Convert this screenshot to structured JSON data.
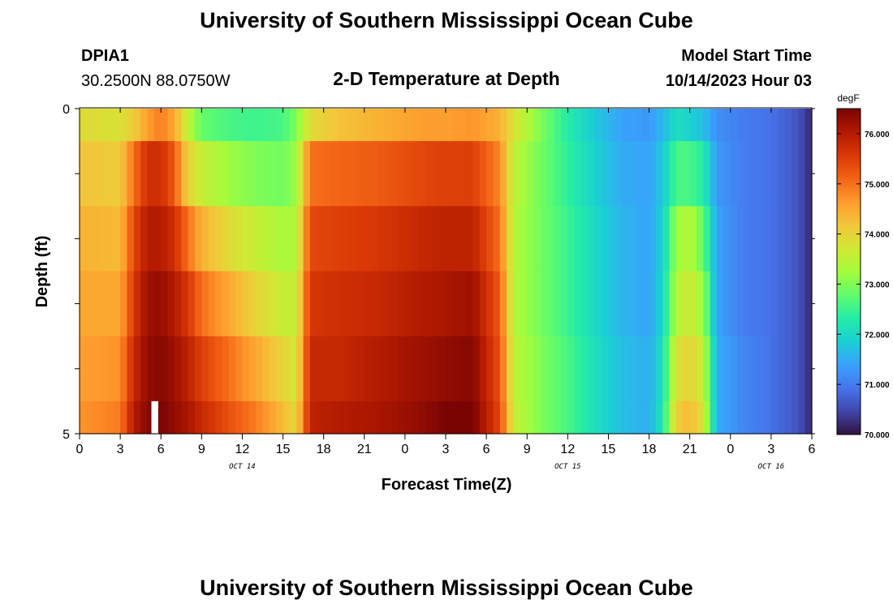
{
  "header": {
    "title": "University of Southern Mississippi Ocean Cube",
    "station_id": "DPIA1",
    "coords": "30.2500N  88.0750W",
    "plot_title": "2-D Temperature at Depth",
    "start_label": "Model Start Time",
    "start_value": "10/14/2023 Hour 03"
  },
  "footer": {
    "title": "University of Southern Mississippi Ocean Cube"
  },
  "chart_data": {
    "type": "heatmap",
    "xlabel": "Forecast Time(Z)",
    "ylabel": "Depth (ft)",
    "y_tick_labels": [
      "0",
      "5"
    ],
    "x_tick_labels": [
      "0",
      "3",
      "6",
      "9",
      "12",
      "15",
      "18",
      "21",
      "0",
      "3",
      "6",
      "9",
      "12",
      "15",
      "18",
      "21",
      "0",
      "3",
      "6"
    ],
    "date_labels": [
      {
        "text": "OCT 14",
        "hour": 12
      },
      {
        "text": "OCT 15",
        "hour": 36
      },
      {
        "text": "OCT 16",
        "hour": 51
      }
    ],
    "x_range_hours": [
      0,
      54
    ],
    "y_range_ft": [
      0,
      5
    ],
    "depth_levels": 5,
    "colorbar": {
      "unit": "degF",
      "min": 70.0,
      "max": 76.5,
      "tick_labels": [
        "70.000",
        "71.000",
        "72.000",
        "73.000",
        "74.000",
        "75.000",
        "76.000"
      ],
      "stops": [
        "#30123b",
        "#4145ab",
        "#4675ed",
        "#39a2fc",
        "#1bcfd4",
        "#24eca6",
        "#61fc6c",
        "#a4fc3b",
        "#d1e834",
        "#f3c63a",
        "#fe9b2d",
        "#f36315",
        "#d93806",
        "#b11901",
        "#7a0403"
      ]
    },
    "time_temps_degF": [
      {
        "hour": 0,
        "levels": [
          73.9,
          74.2,
          74.4,
          74.5,
          74.6,
          74.7
        ]
      },
      {
        "hour": 3,
        "levels": [
          73.8,
          74.1,
          74.3,
          74.5,
          74.7,
          74.9
        ]
      },
      {
        "hour": 4,
        "levels": [
          74.1,
          75.0,
          75.4,
          75.6,
          75.8,
          76.0
        ]
      },
      {
        "hour": 5,
        "levels": [
          74.6,
          75.7,
          76.0,
          76.2,
          76.3,
          76.4
        ]
      },
      {
        "hour": 6,
        "levels": [
          74.9,
          75.7,
          76.0,
          76.3,
          76.4,
          76.5
        ]
      },
      {
        "hour": 7,
        "levels": [
          74.5,
          75.2,
          75.7,
          76.0,
          76.2,
          76.3
        ]
      },
      {
        "hour": 8,
        "levels": [
          73.5,
          74.0,
          75.0,
          75.6,
          75.9,
          76.1
        ]
      },
      {
        "hour": 9,
        "levels": [
          72.8,
          73.6,
          74.4,
          75.0,
          75.5,
          75.8
        ]
      },
      {
        "hour": 11,
        "levels": [
          72.6,
          73.2,
          73.9,
          74.5,
          75.0,
          75.3
        ]
      },
      {
        "hour": 13,
        "levels": [
          72.5,
          73.0,
          73.6,
          74.0,
          74.5,
          74.9
        ]
      },
      {
        "hour": 15,
        "levels": [
          72.6,
          72.9,
          73.3,
          73.6,
          74.0,
          74.3
        ]
      },
      {
        "hour": 16,
        "levels": [
          73.0,
          73.2,
          73.4,
          73.6,
          73.7,
          73.9
        ]
      },
      {
        "hour": 17,
        "levels": [
          73.9,
          75.0,
          75.4,
          75.6,
          75.8,
          75.9
        ]
      },
      {
        "hour": 19,
        "levels": [
          74.2,
          75.1,
          75.5,
          75.7,
          75.8,
          76.0
        ]
      },
      {
        "hour": 22,
        "levels": [
          74.4,
          75.2,
          75.6,
          75.8,
          76.0,
          76.1
        ]
      },
      {
        "hour": 25,
        "levels": [
          74.6,
          75.4,
          75.8,
          76.0,
          76.2,
          76.3
        ]
      },
      {
        "hour": 27,
        "levels": [
          74.6,
          75.5,
          75.9,
          76.1,
          76.3,
          76.5
        ]
      },
      {
        "hour": 29,
        "levels": [
          74.7,
          75.5,
          75.9,
          76.2,
          76.4,
          76.5
        ]
      },
      {
        "hour": 31,
        "levels": [
          74.4,
          74.8,
          75.0,
          75.2,
          75.3,
          75.4
        ]
      },
      {
        "hour": 32,
        "levels": [
          73.8,
          73.5,
          73.4,
          73.4,
          73.5,
          73.6
        ]
      },
      {
        "hour": 34,
        "levels": [
          73.0,
          72.9,
          72.9,
          72.9,
          73.0,
          73.0
        ]
      },
      {
        "hour": 36,
        "levels": [
          72.3,
          72.4,
          72.5,
          72.5,
          72.6,
          72.6
        ]
      },
      {
        "hour": 38,
        "levels": [
          71.8,
          71.9,
          72.0,
          72.0,
          72.1,
          72.1
        ]
      },
      {
        "hour": 40,
        "levels": [
          71.4,
          71.5,
          71.6,
          71.6,
          71.7,
          71.7
        ]
      },
      {
        "hour": 42,
        "levels": [
          71.3,
          71.4,
          71.4,
          71.4,
          71.5,
          71.5
        ]
      },
      {
        "hour": 43,
        "levels": [
          71.6,
          71.8,
          71.9,
          72.0,
          72.1,
          72.2
        ]
      },
      {
        "hour": 44,
        "levels": [
          72.1,
          72.6,
          73.2,
          73.4,
          73.8,
          74.1
        ]
      },
      {
        "hour": 45,
        "levels": [
          71.9,
          72.6,
          73.4,
          73.7,
          74.0,
          74.3
        ]
      },
      {
        "hour": 46,
        "levels": [
          71.7,
          72.3,
          72.8,
          73.2,
          73.6,
          73.8
        ]
      },
      {
        "hour": 47,
        "levels": [
          71.2,
          71.3,
          71.4,
          71.4,
          71.5,
          71.5
        ]
      },
      {
        "hour": 49,
        "levels": [
          71.0,
          71.0,
          71.0,
          71.0,
          71.1,
          71.1
        ]
      },
      {
        "hour": 51,
        "levels": [
          70.9,
          70.9,
          70.9,
          70.9,
          70.9,
          70.9
        ]
      },
      {
        "hour": 53,
        "levels": [
          70.6,
          70.6,
          70.6,
          70.6,
          70.6,
          70.6
        ]
      },
      {
        "hour": 54,
        "levels": [
          70.2,
          70.2,
          70.2,
          70.2,
          70.2,
          70.2
        ]
      }
    ],
    "missing_cell": {
      "hour_start": 5.3,
      "hour_end": 5.8,
      "level": 5
    }
  }
}
